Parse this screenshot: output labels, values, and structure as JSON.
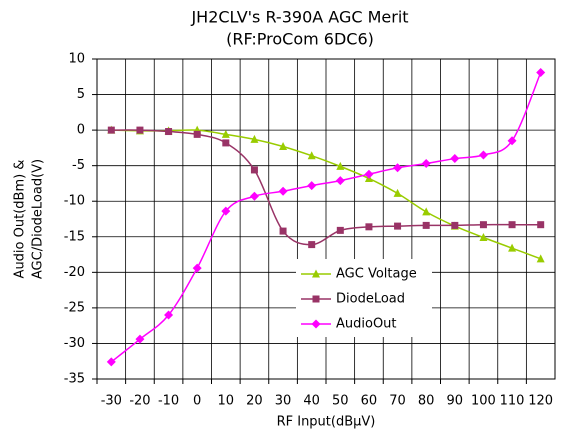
{
  "chart_data": {
    "type": "line",
    "title": "JH2CLV's R-390A AGC Merit",
    "subtitle": "(RF:ProCom 6DC6)",
    "x_label": "RF Input(dBμV)",
    "y_label": [
      "Audio Out(dBm) &",
      "AGC/DiodeLoad(V)"
    ],
    "categories": [
      -30,
      -20,
      -10,
      0,
      10,
      20,
      30,
      40,
      50,
      60,
      70,
      80,
      90,
      100,
      110,
      120
    ],
    "series": [
      {
        "name": "AGC Voltage",
        "color": "#99cc00",
        "marker": "triangle",
        "values": [
          0,
          -0.1,
          -0.1,
          0,
          -0.6,
          -1.3,
          -2.3,
          -3.6,
          -5.1,
          -6.8,
          -8.9,
          -11.5,
          -13.5,
          -15.1,
          -16.6,
          -18.1
        ]
      },
      {
        "name": "DiodeLoad",
        "color": "#993366",
        "marker": "square",
        "values": [
          0,
          0,
          -0.2,
          -0.6,
          -1.8,
          -5.6,
          -14.2,
          -16.1,
          -14.1,
          -13.6,
          -13.5,
          -13.4,
          -13.4,
          -13.3,
          -13.3,
          -13.3
        ]
      },
      {
        "name": "AudioOut",
        "color": "#ff00ff",
        "marker": "diamond",
        "values": [
          -32.6,
          -29.4,
          -26.0,
          -19.4,
          -11.4,
          -9.3,
          -8.6,
          -7.8,
          -7.1,
          -6.2,
          -5.3,
          -4.7,
          -4.0,
          -3.5,
          -1.5,
          8.1
        ]
      }
    ],
    "ylim": [
      -35,
      10
    ],
    "yticks": [
      10,
      5,
      0,
      -5,
      -10,
      -15,
      -20,
      -25,
      -30,
      -35
    ],
    "grid": true,
    "legend": "inside"
  }
}
